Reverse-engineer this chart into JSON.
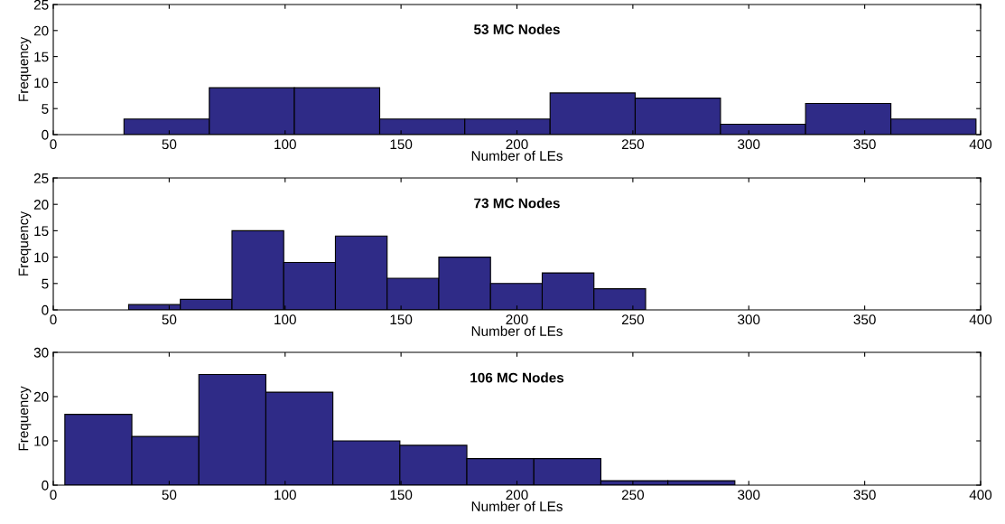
{
  "chart_data": [
    {
      "type": "histogram",
      "title": "53 MC Nodes",
      "xlabel": "Number of LEs",
      "ylabel": "Frequency",
      "bins": [
        30.5,
        67.3,
        104.0,
        140.8,
        177.5,
        214.3,
        251.0,
        287.8,
        324.5,
        361.3,
        398.0
      ],
      "values": [
        3,
        9,
        9,
        3,
        3,
        8,
        7,
        2,
        6,
        3
      ],
      "color": "#2f2b87",
      "xlim": [
        0,
        400
      ],
      "xticks": [
        0,
        50,
        100,
        150,
        200,
        250,
        300,
        350,
        400
      ],
      "ylim": [
        0,
        25
      ],
      "yticks": [
        0,
        5,
        10,
        15,
        20,
        25
      ]
    },
    {
      "type": "histogram",
      "title": "73 MC Nodes",
      "xlabel": "Number of LEs",
      "ylabel": "Frequency",
      "bins": [
        32.5,
        54.8,
        77.1,
        99.4,
        121.7,
        144.0,
        166.3,
        188.6,
        210.9,
        233.2,
        255.5
      ],
      "values": [
        1,
        2,
        15,
        9,
        14,
        6,
        10,
        5,
        7,
        4
      ],
      "color": "#2f2b87",
      "xlim": [
        0,
        400
      ],
      "xticks": [
        0,
        50,
        100,
        150,
        200,
        250,
        300,
        350,
        400
      ],
      "ylim": [
        0,
        25
      ],
      "yticks": [
        0,
        5,
        10,
        15,
        20,
        25
      ]
    },
    {
      "type": "histogram",
      "title": "106 MC Nodes",
      "xlabel": "Number of LEs",
      "ylabel": "Frequency",
      "bins": [
        5.0,
        33.9,
        62.8,
        91.7,
        120.6,
        149.5,
        178.4,
        207.3,
        236.2,
        265.1,
        294.0
      ],
      "values": [
        16,
        11,
        25,
        21,
        10,
        9,
        6,
        6,
        1,
        1
      ],
      "color": "#2f2b87",
      "xlim": [
        0,
        400
      ],
      "xticks": [
        0,
        50,
        100,
        150,
        200,
        250,
        300,
        350,
        400
      ],
      "ylim": [
        0,
        30
      ],
      "yticks": [
        0,
        10,
        20,
        30
      ]
    }
  ]
}
